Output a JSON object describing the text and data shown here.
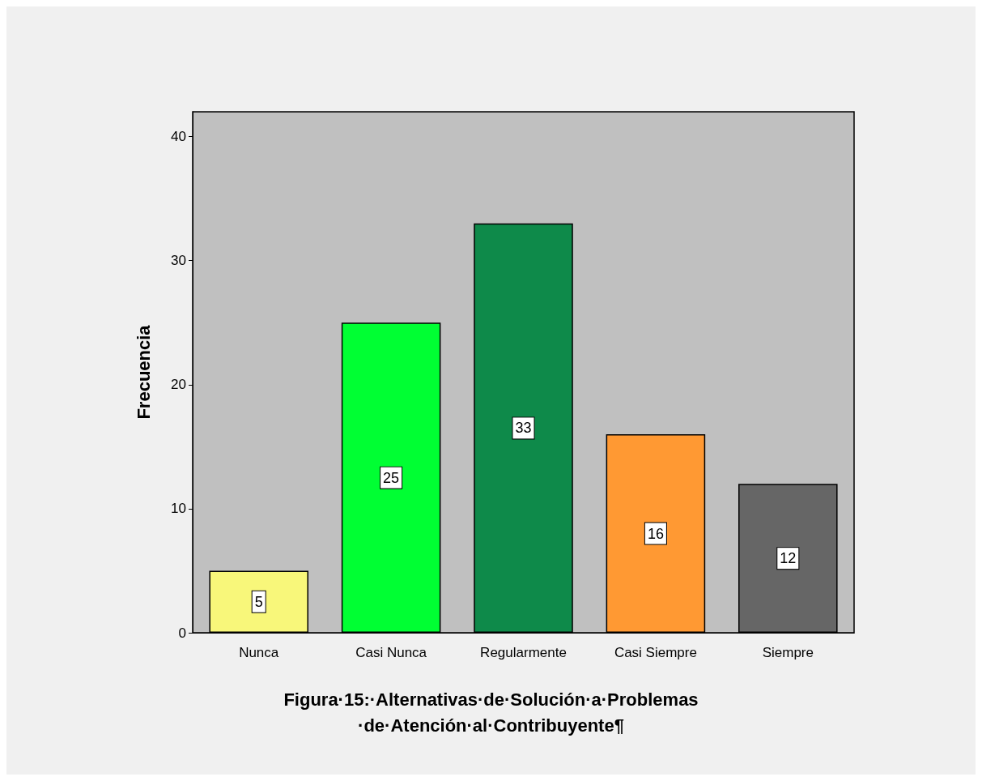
{
  "chart_data": {
    "type": "bar",
    "title": "Figura·15:·Alternativas·de·Solución·a·Problemas·de·Atención·al·Contribuyente¶",
    "ylabel": "Frecuencia",
    "categories": [
      "Nunca",
      "Casi Nunca",
      "Regularmente",
      "Casi Siempre",
      "Siempre"
    ],
    "values": [
      5,
      25,
      33,
      16,
      12
    ],
    "colors": [
      "#f8f77a",
      "#00ff33",
      "#0e8a4a",
      "#ff9933",
      "#666666"
    ],
    "ylim": [
      0,
      42
    ],
    "yticks": [
      0,
      10,
      20,
      30,
      40
    ],
    "data_labels": true,
    "grid": false
  }
}
